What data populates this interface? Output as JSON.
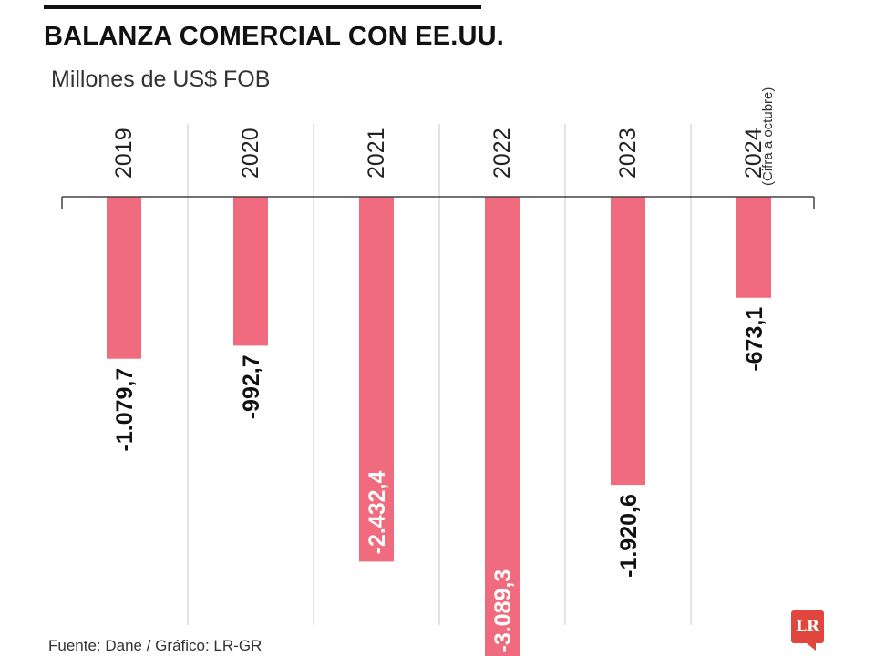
{
  "header": {
    "title": "BALANZA COMERCIAL CON EE.UU.",
    "subtitle": "Millones de US$ FOB"
  },
  "footer": {
    "source": "Fuente: Dane  / Gráfico: LR-GR"
  },
  "logo": {
    "text": "LR",
    "color": "#e0453e"
  },
  "colors": {
    "bar": "#f16b7e",
    "axis": "#444444",
    "divider": "#c8c8c8",
    "label_dark": "#111111",
    "label_light": "#ffffff"
  },
  "chart_data": {
    "type": "bar",
    "categories": [
      "2019",
      "2020",
      "2021",
      "2022",
      "2023",
      "2024"
    ],
    "category_notes": [
      "",
      "",
      "",
      "",
      "",
      "(Cifra a octubre)"
    ],
    "values": [
      -1079.7,
      -992.7,
      -2432.4,
      -3089.3,
      -1920.6,
      -673.1
    ],
    "value_labels": [
      "-1.079,7",
      "-992,7",
      "-2.432,4",
      "-3.089,3",
      "-1.920,6",
      "-673,1"
    ],
    "title": "BALANZA COMERCIAL CON EE.UU.",
    "subtitle": "Millones de US$ FOB",
    "ylabel": "",
    "xlabel": "",
    "grid": false,
    "orientation": "vertical bars hanging below baseline; labels rotated vertically"
  }
}
